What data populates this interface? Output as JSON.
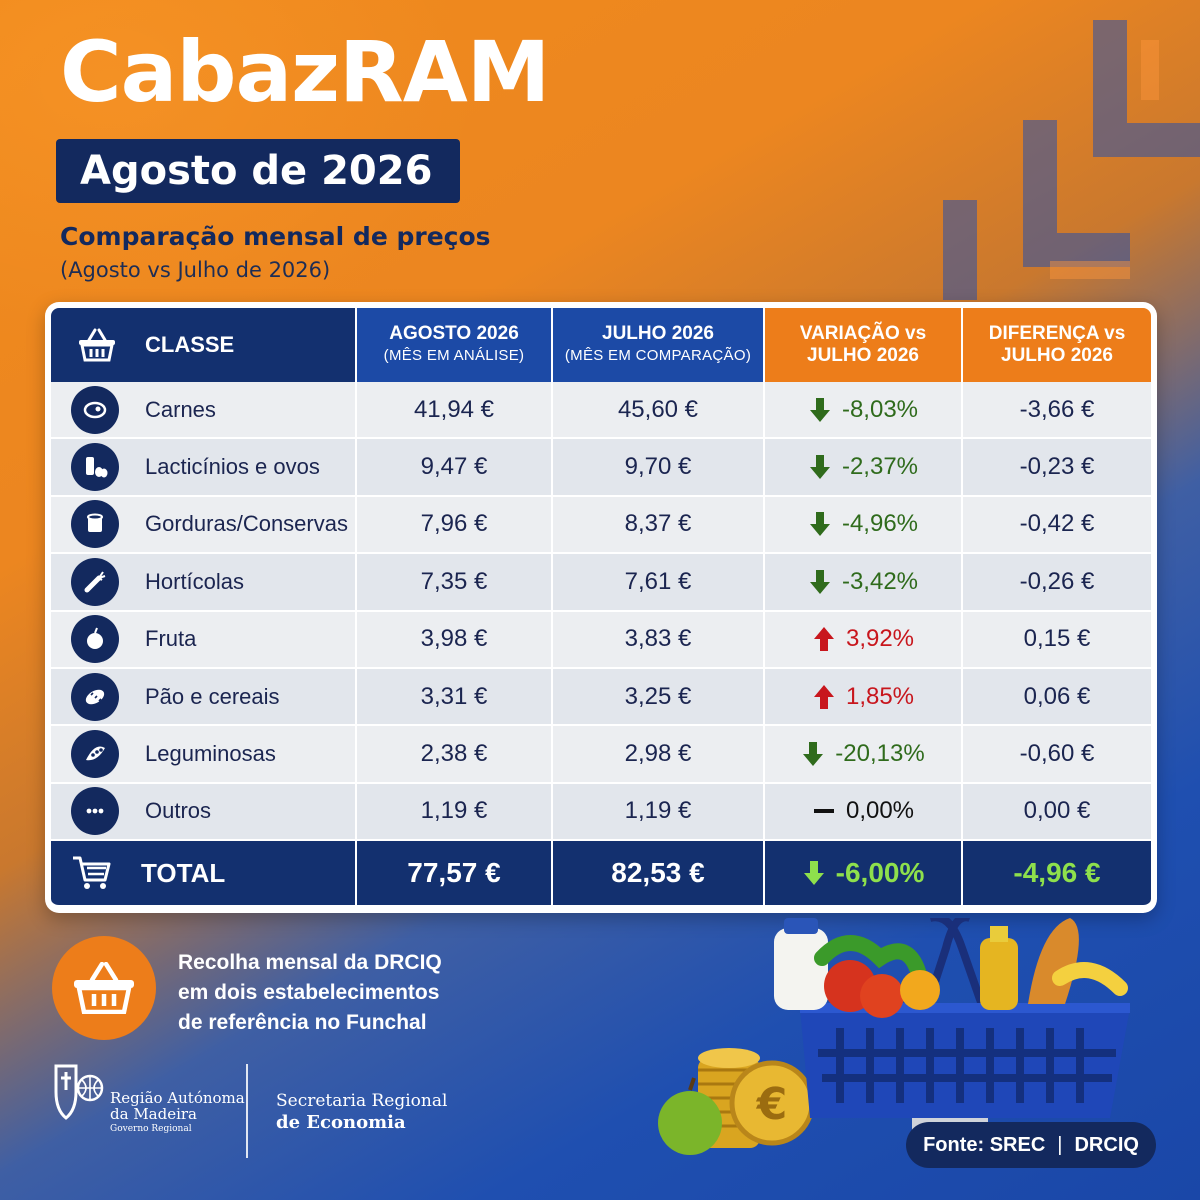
{
  "header": {
    "title": "CabazRAM",
    "month_badge": "Agosto de 2026",
    "subtitle": "Comparação mensal de preços",
    "subnote": "(Agosto vs Julho de 2026)"
  },
  "table": {
    "columns": [
      {
        "label": "CLASSE",
        "sub": ""
      },
      {
        "label": "AGOSTO 2026",
        "sub": "(MÊS EM ANÁLISE)"
      },
      {
        "label": "JULHO 2026",
        "sub": "(MÊS EM COMPARAÇÃO)"
      },
      {
        "label": "VARIAÇÃO vs",
        "sub": "JULHO 2026"
      },
      {
        "label": "DIFERENÇA vs",
        "sub": "JULHO 2026"
      }
    ],
    "rows": [
      {
        "icon": "meat-icon",
        "classe": "Carnes",
        "agosto": "41,94 €",
        "julho": "45,60 €",
        "variacao": "-8,03%",
        "diferenca": "-3,66 €",
        "trend": "down"
      },
      {
        "icon": "dairy-eggs-icon",
        "classe": "Lacticínios e ovos",
        "agosto": "9,47 €",
        "julho": "9,70 €",
        "variacao": "-2,37%",
        "diferenca": "-0,23 €",
        "trend": "down"
      },
      {
        "icon": "can-icon",
        "classe": "Gorduras/Conservas",
        "agosto": "7,96 €",
        "julho": "8,37 €",
        "variacao": "-4,96%",
        "diferenca": "-0,42 €",
        "trend": "down"
      },
      {
        "icon": "vegetable-icon",
        "classe": "Hortícolas",
        "agosto": "7,35 €",
        "julho": "7,61 €",
        "variacao": "-3,42%",
        "diferenca": "-0,26 €",
        "trend": "down"
      },
      {
        "icon": "apple-icon",
        "classe": "Fruta",
        "agosto": "3,98 €",
        "julho": "3,83 €",
        "variacao": "3,92%",
        "diferenca": "0,15 €",
        "trend": "up"
      },
      {
        "icon": "bread-icon",
        "classe": "Pão e cereais",
        "agosto": "3,31 €",
        "julho": "3,25 €",
        "variacao": "1,85%",
        "diferenca": "0,06 €",
        "trend": "up"
      },
      {
        "icon": "legume-pod-icon",
        "classe": "Leguminosas",
        "agosto": "2,38 €",
        "julho": "2,98 €",
        "variacao": "-20,13%",
        "diferenca": "-0,60 €",
        "trend": "down"
      },
      {
        "icon": "more-dots-icon",
        "classe": "Outros",
        "agosto": "1,19 €",
        "julho": "1,19 €",
        "variacao": "0,00%",
        "diferenca": "0,00 €",
        "trend": "flat"
      }
    ],
    "total": {
      "label": "TOTAL",
      "agosto": "77,57 €",
      "julho": "82,53 €",
      "variacao": "-6,00%",
      "diferenca": "-4,96 €",
      "trend": "down"
    }
  },
  "note": {
    "text_lines": [
      "Recolha mensal da DRCIQ",
      "em dois estabelecimentos",
      "de referência no Funchal"
    ]
  },
  "footer": {
    "region_line1": "Região Autónoma",
    "region_line2": "da Madeira",
    "region_line3": "Governo Regional",
    "org_line1": "Secretaria Regional",
    "org_line2": "de Economia",
    "source_label": "Fonte: SREC",
    "source_sep": "|",
    "source_org": "DRCIQ"
  },
  "colors": {
    "navy": "#13306f",
    "blue": "#1c4aa6",
    "orange": "#ed7d1a",
    "down": "#2f6b1c",
    "up": "#c8161d",
    "total_green": "#8ee04c"
  }
}
